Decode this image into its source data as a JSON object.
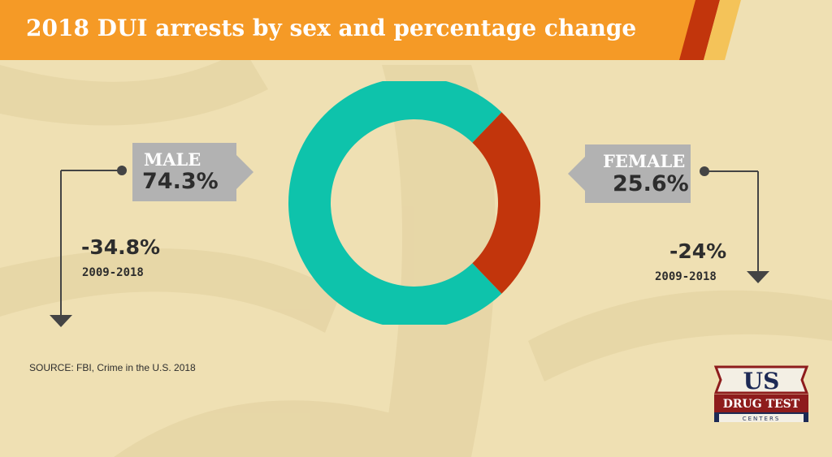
{
  "title": "2018 DUI arrests by sex and percentage change",
  "colors": {
    "male": "#0ec3ab",
    "female": "#c2350c",
    "banner": "#f59a26",
    "stripe_dark": "#c2350c",
    "stripe_light": "#f4c359",
    "callout": "#b2b2b2",
    "background": "#efe0b3"
  },
  "chart_data": {
    "type": "pie",
    "donut": true,
    "title": "2018 DUI arrests by sex and percentage change",
    "categories": [
      "MALE",
      "FEMALE"
    ],
    "values": [
      74.3,
      25.6
    ],
    "value_labels": [
      "74.3%",
      "25.6%"
    ],
    "percentage_change": [
      {
        "category": "MALE",
        "label": "-34.8%",
        "value": -34.8,
        "period": "2009-2018"
      },
      {
        "category": "FEMALE",
        "label": "-24%",
        "value": -24,
        "period": "2009-2018"
      }
    ]
  },
  "male": {
    "label": "MALE",
    "value_label": "74.3%",
    "change": "-34.8%",
    "period": "2009-2018"
  },
  "female": {
    "label": "FEMALE",
    "value_label": "25.6%",
    "change": "-24%",
    "period": "2009-2018"
  },
  "source": "SOURCE: FBI, Crime in the U.S. 2018",
  "logo": {
    "main": "US",
    "sub": "DRUG TEST",
    "tag": "CENTERS"
  }
}
